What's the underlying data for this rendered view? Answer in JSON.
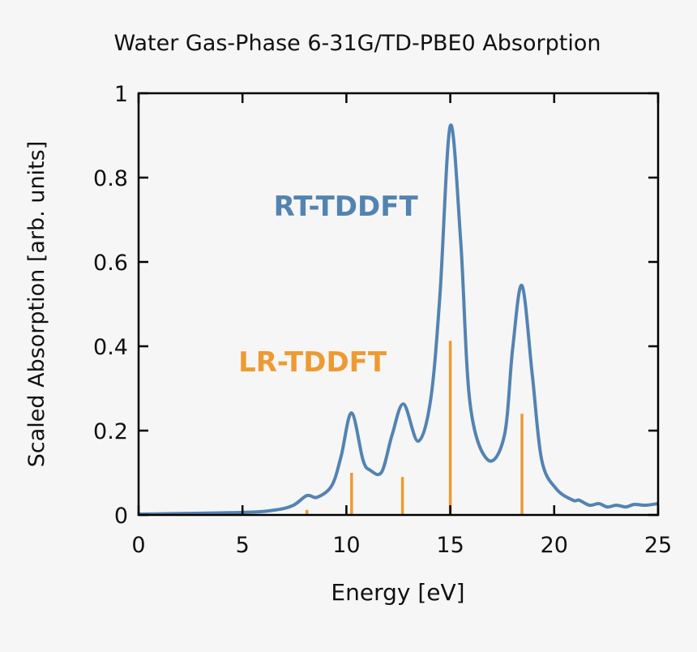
{
  "chart_data": {
    "type": "line",
    "title": "Water Gas-Phase 6-31G/TD-PBE0 Absorption",
    "xlabel": "Energy [eV]",
    "ylabel": "Scaled Absorption [arb. units]",
    "xlim": [
      0,
      25
    ],
    "ylim": [
      0,
      1
    ],
    "xticks": [
      "0",
      "5",
      "10",
      "15",
      "20",
      "25"
    ],
    "yticks": [
      "0",
      "0.2",
      "0.4",
      "0.6",
      "0.8",
      "1"
    ],
    "grid": false,
    "colors": {
      "rt": "#5383b2",
      "lr": "#ee9a32",
      "background": "#f6f6f6"
    },
    "series": [
      {
        "name": "RT-TDDFT",
        "kind": "line",
        "x": [
          0,
          5,
          6.6,
          7.45,
          8.1,
          8.6,
          9.3,
          9.75,
          10.25,
          10.8,
          11.15,
          11.7,
          12.2,
          12.75,
          13.45,
          14.05,
          14.5,
          15.0,
          15.5,
          15.95,
          16.8,
          17.6,
          18.0,
          18.45,
          18.95,
          19.4,
          20.1,
          20.9,
          21.2,
          21.7,
          22.15,
          22.55,
          23.0,
          23.45,
          23.85,
          24.4,
          25
        ],
        "y": [
          0.002,
          0.006,
          0.012,
          0.023,
          0.046,
          0.042,
          0.07,
          0.14,
          0.242,
          0.13,
          0.106,
          0.102,
          0.19,
          0.263,
          0.175,
          0.272,
          0.52,
          0.923,
          0.65,
          0.265,
          0.131,
          0.188,
          0.394,
          0.544,
          0.33,
          0.13,
          0.062,
          0.035,
          0.035,
          0.023,
          0.027,
          0.019,
          0.023,
          0.019,
          0.025,
          0.023,
          0.027
        ]
      },
      {
        "name": "LR-TDDFT",
        "kind": "stick",
        "x": [
          8.1,
          10.25,
          12.7,
          15.0,
          18.45
        ],
        "y": [
          0.012,
          0.1,
          0.09,
          0.413,
          0.24
        ]
      }
    ],
    "annotations": [
      {
        "text": "RT-TDDFT",
        "x": 6.5,
        "y": 0.71,
        "series": "rt"
      },
      {
        "text": "LR-TDDFT",
        "x": 4.8,
        "y": 0.34,
        "series": "lr"
      }
    ]
  }
}
